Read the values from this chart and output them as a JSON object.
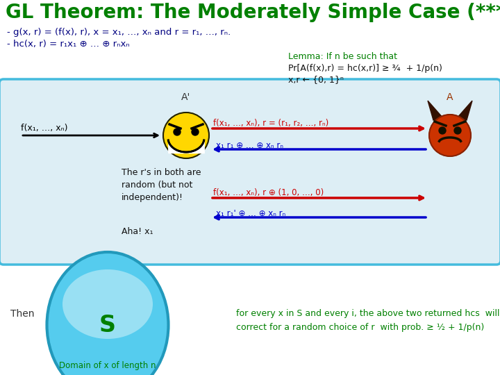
{
  "title": "GL Theorem: The Moderately Simple Case (***)",
  "title_color": "#008000",
  "title_fontsize": 20,
  "slide_bg": "#ffffff",
  "line1": "- g(x, r) = (f(x), r), x = x₁, …, xₙ and r = r₁, …, rₙ.",
  "line2": "- hc(x, r) = r₁x₁ ⊕ … ⊕ rₙxₙ",
  "text_color_dark": "#000080",
  "lemma_text": "Lemma: If n be such that",
  "lemma_color": "#008000",
  "pr_text": "Pr[A(f(x),r) = hc(x,r)] ≥ ¾  + 1/p(n)",
  "xr_text": "x,r ← {0, 1}ⁿ",
  "box_bg": "#ddeef5",
  "box_edge": "#44bbdd",
  "arrow_right_color": "#cc0000",
  "arrow_left_color": "#0000cc",
  "label_Aprime": "A'",
  "label_A": "A",
  "label_fx": "f(x₁, …, xₙ)",
  "label_send1": "f(x₁, …, xₙ), r = (r₁, r₂, …, rₙ)",
  "label_ret1": "x₁ r₁ ⊕ … ⊕ xₙ rₙ",
  "label_note": "The r's in both are\nrandom (but not\nindependent)!",
  "label_send2": "f(x₁, …, xₙ), r ⊕ (1, 0, …, 0)",
  "label_ret2": "x₁ r₁' ⊕ … ⊕ xₙ rₙ",
  "label_aha": "Aha! x₁",
  "oval_fill": "#55ccee",
  "oval_edge": "#2299bb",
  "oval_inner_fill": "#aaddee",
  "circle_label": "S",
  "then_label": "Then",
  "domain_label": "Domain of x of length n",
  "for_every_text": "for every x in S and every i, the above two returned hcs  will be\ncorrect for a random choice of r  with prob. ≥ ½ + 1/p(n)",
  "for_every_color": "#008000"
}
